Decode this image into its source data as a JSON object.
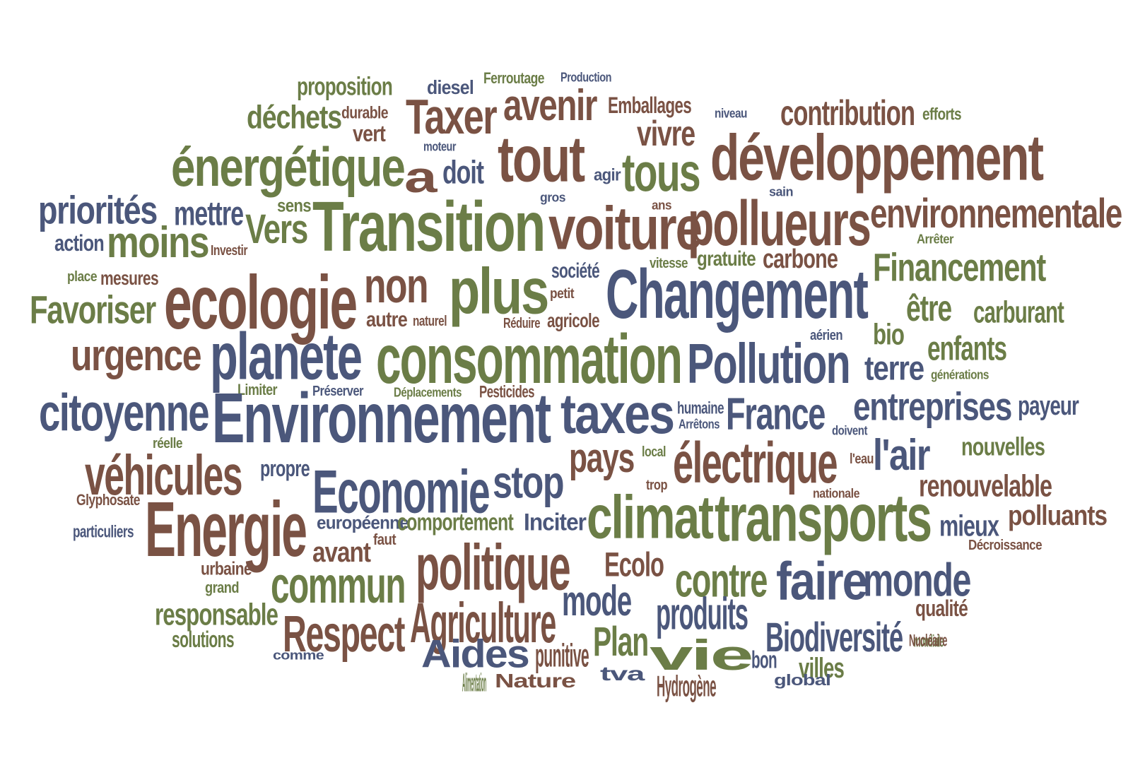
{
  "palette": {
    "green": "#6b7d47",
    "brown": "#7a5244",
    "blue": "#4b577b"
  },
  "words": [
    {
      "text": "proposition",
      "color": "green"
    },
    {
      "text": "diesel",
      "color": "blue"
    },
    {
      "text": "Ferroutage",
      "color": "green"
    },
    {
      "text": "Production",
      "color": "blue"
    },
    {
      "text": "avenir",
      "color": "brown"
    },
    {
      "text": "Taxer",
      "color": "brown"
    },
    {
      "text": "Emballages",
      "color": "brown"
    },
    {
      "text": "contribution",
      "color": "brown"
    },
    {
      "text": "efforts",
      "color": "green"
    },
    {
      "text": "niveau",
      "color": "blue"
    },
    {
      "text": "déchets",
      "color": "green"
    },
    {
      "text": "durable",
      "color": "brown"
    },
    {
      "text": "vert",
      "color": "brown"
    },
    {
      "text": "vivre",
      "color": "brown"
    },
    {
      "text": "moteur",
      "color": "blue"
    },
    {
      "text": "tout",
      "color": "brown"
    },
    {
      "text": "développement",
      "color": "brown"
    },
    {
      "text": "énergétique",
      "color": "green"
    },
    {
      "text": "a",
      "color": "brown"
    },
    {
      "text": "doit",
      "color": "blue"
    },
    {
      "text": "agir",
      "color": "blue"
    },
    {
      "text": "tous",
      "color": "green"
    },
    {
      "text": "sain",
      "color": "blue"
    },
    {
      "text": "gros",
      "color": "blue"
    },
    {
      "text": "ans",
      "color": "brown"
    },
    {
      "text": "priorités",
      "color": "blue"
    },
    {
      "text": "mettre",
      "color": "blue"
    },
    {
      "text": "sens",
      "color": "green"
    },
    {
      "text": "Transition",
      "color": "green"
    },
    {
      "text": "voiture",
      "color": "brown"
    },
    {
      "text": "pollueurs",
      "color": "brown"
    },
    {
      "text": "environnementale",
      "color": "brown"
    },
    {
      "text": "Vers",
      "color": "green"
    },
    {
      "text": "moins",
      "color": "green"
    },
    {
      "text": "action",
      "color": "blue"
    },
    {
      "text": "Investir",
      "color": "brown"
    },
    {
      "text": "Arrêter",
      "color": "green"
    },
    {
      "text": "vitesse",
      "color": "green"
    },
    {
      "text": "gratuite",
      "color": "green"
    },
    {
      "text": "carbone",
      "color": "brown"
    },
    {
      "text": "Financement",
      "color": "green"
    },
    {
      "text": "place",
      "color": "green"
    },
    {
      "text": "mesures",
      "color": "brown"
    },
    {
      "text": "ecologie",
      "color": "brown"
    },
    {
      "text": "non",
      "color": "brown"
    },
    {
      "text": "plus",
      "color": "green"
    },
    {
      "text": "société",
      "color": "blue"
    },
    {
      "text": "petit",
      "color": "brown"
    },
    {
      "text": "Changement",
      "color": "blue"
    },
    {
      "text": "Favoriser",
      "color": "green"
    },
    {
      "text": "autre",
      "color": "brown"
    },
    {
      "text": "naturel",
      "color": "brown"
    },
    {
      "text": "Réduire",
      "color": "brown"
    },
    {
      "text": "agricole",
      "color": "brown"
    },
    {
      "text": "être",
      "color": "green"
    },
    {
      "text": "carburant",
      "color": "green"
    },
    {
      "text": "bio",
      "color": "green"
    },
    {
      "text": "aérien",
      "color": "blue"
    },
    {
      "text": "urgence",
      "color": "brown"
    },
    {
      "text": "planete",
      "color": "blue"
    },
    {
      "text": "consommation",
      "color": "green"
    },
    {
      "text": "Pollution",
      "color": "blue"
    },
    {
      "text": "enfants",
      "color": "green"
    },
    {
      "text": "terre",
      "color": "blue"
    },
    {
      "text": "générations",
      "color": "green"
    },
    {
      "text": "Limiter",
      "color": "green"
    },
    {
      "text": "Préserver",
      "color": "blue"
    },
    {
      "text": "Déplacements",
      "color": "green"
    },
    {
      "text": "Pesticides",
      "color": "brown"
    },
    {
      "text": "citoyenne",
      "color": "blue"
    },
    {
      "text": "Environnement",
      "color": "blue"
    },
    {
      "text": "taxes",
      "color": "blue"
    },
    {
      "text": "humaine",
      "color": "blue"
    },
    {
      "text": "Arrêtons",
      "color": "blue"
    },
    {
      "text": "France",
      "color": "blue"
    },
    {
      "text": "entreprises",
      "color": "blue"
    },
    {
      "text": "payeur",
      "color": "blue"
    },
    {
      "text": "doivent",
      "color": "blue"
    },
    {
      "text": "réelle",
      "color": "green"
    },
    {
      "text": "local",
      "color": "green"
    },
    {
      "text": "nouvelles",
      "color": "green"
    },
    {
      "text": "véhicules",
      "color": "brown"
    },
    {
      "text": "propre",
      "color": "blue"
    },
    {
      "text": "pays",
      "color": "brown"
    },
    {
      "text": "électrique",
      "color": "brown"
    },
    {
      "text": "l'air",
      "color": "blue"
    },
    {
      "text": "l'eau",
      "color": "brown"
    },
    {
      "text": "Economie",
      "color": "blue"
    },
    {
      "text": "stop",
      "color": "blue"
    },
    {
      "text": "renouvelable",
      "color": "brown"
    },
    {
      "text": "trop",
      "color": "brown"
    },
    {
      "text": "nationale",
      "color": "brown"
    },
    {
      "text": "Glyphosate",
      "color": "brown"
    },
    {
      "text": "Energie",
      "color": "brown"
    },
    {
      "text": "climat",
      "color": "green"
    },
    {
      "text": "transports",
      "color": "green"
    },
    {
      "text": "polluants",
      "color": "brown"
    },
    {
      "text": "particuliers",
      "color": "blue"
    },
    {
      "text": "européenne",
      "color": "blue"
    },
    {
      "text": "comportement",
      "color": "green"
    },
    {
      "text": "Inciter",
      "color": "blue"
    },
    {
      "text": "mieux",
      "color": "blue"
    },
    {
      "text": "faut",
      "color": "brown"
    },
    {
      "text": "avant",
      "color": "brown"
    },
    {
      "text": "politique",
      "color": "brown"
    },
    {
      "text": "Décroissance",
      "color": "brown"
    },
    {
      "text": "urbaine",
      "color": "brown"
    },
    {
      "text": "Ecolo",
      "color": "brown"
    },
    {
      "text": "faire",
      "color": "blue"
    },
    {
      "text": "monde",
      "color": "blue"
    },
    {
      "text": "grand",
      "color": "green"
    },
    {
      "text": "commun",
      "color": "green"
    },
    {
      "text": "mode",
      "color": "blue"
    },
    {
      "text": "contre",
      "color": "green"
    },
    {
      "text": "responsable",
      "color": "green"
    },
    {
      "text": "Agriculture",
      "color": "brown"
    },
    {
      "text": "produits",
      "color": "blue"
    },
    {
      "text": "qualité",
      "color": "brown"
    },
    {
      "text": "Respect",
      "color": "brown"
    },
    {
      "text": "Plan",
      "color": "green"
    },
    {
      "text": "Biodiversité",
      "color": "blue"
    },
    {
      "text": "mondiale",
      "color": "green"
    },
    {
      "text": "solutions",
      "color": "green"
    },
    {
      "text": "Aides",
      "color": "blue"
    },
    {
      "text": "punitive",
      "color": "brown"
    },
    {
      "text": "vie",
      "color": "green"
    },
    {
      "text": "bon",
      "color": "blue"
    },
    {
      "text": "villes",
      "color": "green"
    },
    {
      "text": "Nucléaire",
      "color": "brown"
    },
    {
      "text": "comme",
      "color": "blue"
    },
    {
      "text": "tva",
      "color": "blue"
    },
    {
      "text": "Alimentation",
      "color": "green"
    },
    {
      "text": "Nature",
      "color": "brown"
    },
    {
      "text": "Hydrogène",
      "color": "brown"
    },
    {
      "text": "global",
      "color": "blue"
    }
  ]
}
